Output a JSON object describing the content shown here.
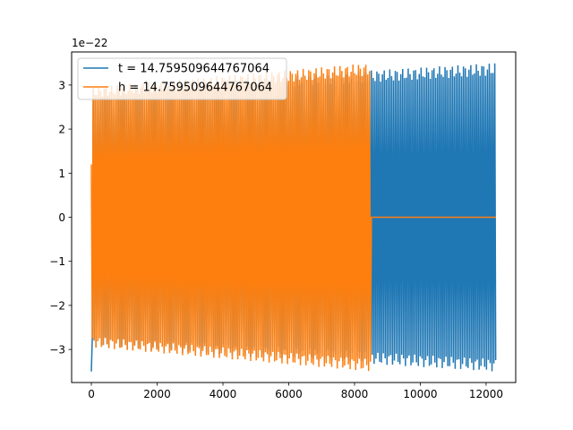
{
  "chart_data": {
    "type": "line",
    "title": "",
    "xlabel": "",
    "ylabel": "",
    "offset_label": "1e−22",
    "xlim": [
      -600,
      12900
    ],
    "ylim": [
      -3.75,
      3.75
    ],
    "x_ticks": [
      0,
      2000,
      4000,
      6000,
      8000,
      10000,
      12000
    ],
    "x_tick_labels": [
      "0",
      "2000",
      "4000",
      "6000",
      "8000",
      "10000",
      "12000"
    ],
    "y_ticks": [
      -3,
      -2,
      -1,
      0,
      1,
      2,
      3
    ],
    "y_tick_labels": [
      "−3",
      "−2",
      "−1",
      "0",
      "1",
      "2",
      "3"
    ],
    "grid": false,
    "legend_position": "upper-left",
    "series": [
      {
        "name": "t = 14.759509644767064",
        "color": "#1f77b4",
        "x_range": [
          0,
          12300
        ],
        "amplitude_start": 2.95,
        "amplitude_end": 3.5,
        "first_min": -3.5,
        "oscillating": true
      },
      {
        "name": "h = 14.759509644767064",
        "color": "#ff7f0e",
        "x_range": [
          0,
          12300
        ],
        "oscillation_end_x": 8500,
        "amplitude_start": 2.95,
        "amplitude_end": 3.5,
        "flat_value_after_end": 0.0,
        "oscillating": true
      }
    ]
  }
}
